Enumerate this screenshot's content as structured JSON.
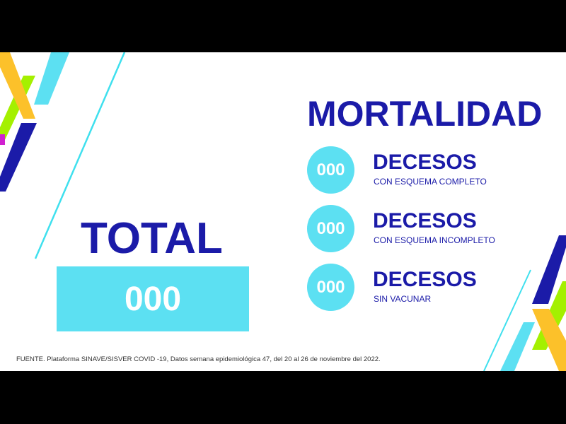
{
  "title": "MORTALIDAD",
  "total": {
    "label": "TOTAL",
    "value": "000"
  },
  "items": [
    {
      "value": "000",
      "title": "DECESOS",
      "subtitle": "CON ESQUEMA COMPLETO"
    },
    {
      "value": "000",
      "title": "DECESOS",
      "subtitle": "CON ESQUEMA INCOMPLETO"
    },
    {
      "value": "000",
      "title": "DECESOS",
      "subtitle": "SIN VACUNAR"
    }
  ],
  "source": "FUENTE. Plataforma SINAVE/SISVER COVID -19, Datos semana epidemiológica 47, del 20 al 26 de noviembre del 2022.",
  "colors": {
    "navy": "#1b1ba8",
    "cyan": "#5ce0f2",
    "yellow": "#fcc12a",
    "green": "#a4f000",
    "magenta": "#d020d0"
  }
}
